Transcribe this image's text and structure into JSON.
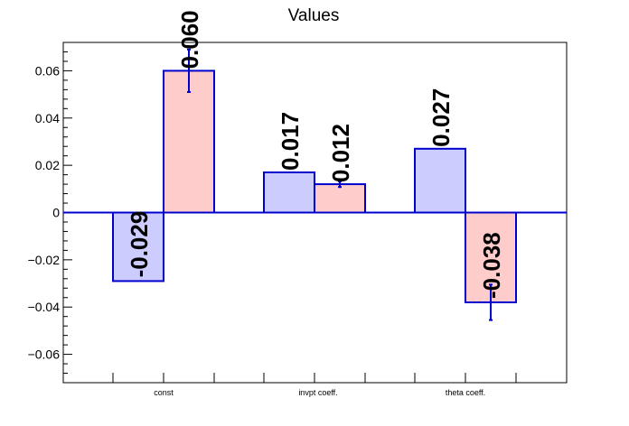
{
  "chart_data": {
    "type": "bar",
    "title": "Values",
    "xlabel": "",
    "ylabel": "",
    "categories": [
      "const",
      "invpt coeff.",
      "theta coeff."
    ],
    "series": [
      {
        "values": [
          -0.029,
          0.017,
          0.027
        ],
        "errors": [
          0.0,
          0.0,
          0.0
        ],
        "labels": [
          "-0.029",
          "0.017",
          "0.027"
        ],
        "fill": "#ccccff",
        "stroke": "#0000cc"
      },
      {
        "values": [
          0.06,
          0.012,
          -0.038
        ],
        "errors": [
          0.009,
          0.0012,
          0.0075
        ],
        "labels": [
          "0.060",
          "0.012",
          "-0.038"
        ],
        "fill": "#ffcccc",
        "stroke": "#0000cc"
      }
    ],
    "ylim": [
      -0.072,
      0.072
    ],
    "yticks": [
      -0.06,
      -0.04,
      -0.02,
      0,
      0.02,
      0.04,
      0.06
    ],
    "ytick_labels": [
      "−0.06",
      "−0.04",
      "−0.02",
      "0",
      "0.02",
      "0.04",
      "0.06"
    ],
    "grid": false,
    "zero_line_color": "#0000cc"
  }
}
